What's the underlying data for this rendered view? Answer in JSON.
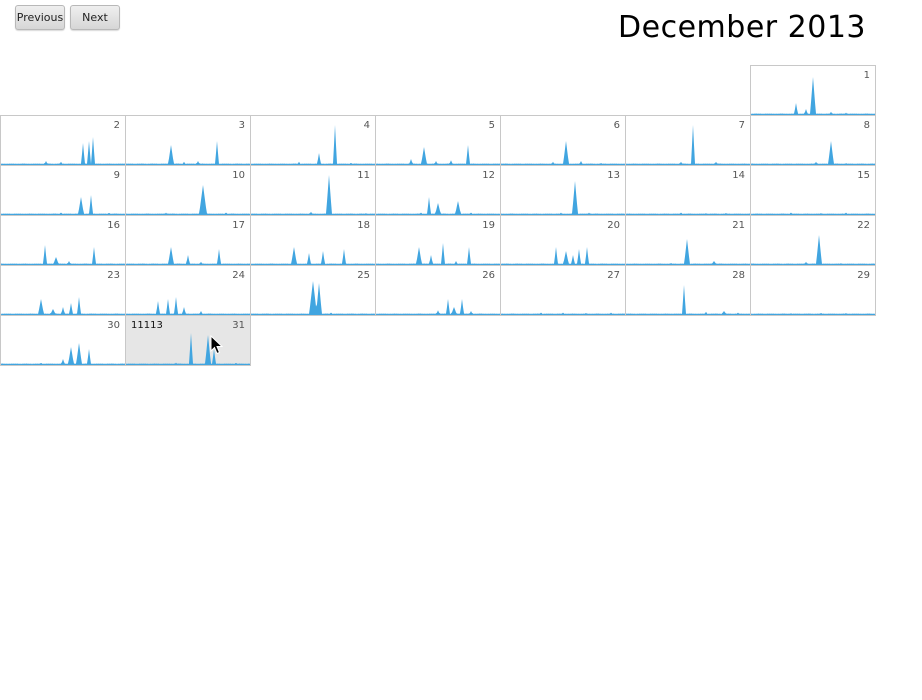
{
  "toolbar": {
    "previous_label": "Previous",
    "next_label": "Next"
  },
  "header": {
    "title": "December 2013"
  },
  "calendar": {
    "start_weekday_index": 6,
    "hovered_day": 31,
    "hovered_count": "11113",
    "area_color": "#41a5e0",
    "days": [
      {
        "day": "1",
        "spikes": [
          [
            45,
            0.3,
            2
          ],
          [
            62,
            0.95,
            3
          ],
          [
            55,
            0.15,
            2
          ],
          [
            80,
            0.08,
            2
          ],
          [
            95,
            0.06,
            2
          ]
        ]
      },
      {
        "day": "2",
        "spikes": [
          [
            82,
            0.55,
            2
          ],
          [
            88,
            0.6,
            2
          ],
          [
            92,
            0.7,
            2
          ],
          [
            45,
            0.1,
            2
          ],
          [
            60,
            0.08,
            2
          ]
        ]
      },
      {
        "day": "3",
        "spikes": [
          [
            45,
            0.5,
            3
          ],
          [
            72,
            0.1,
            2
          ],
          [
            91,
            0.6,
            2
          ],
          [
            58,
            0.08,
            2
          ]
        ]
      },
      {
        "day": "4",
        "spikes": [
          [
            84,
            1.0,
            2
          ],
          [
            68,
            0.3,
            2
          ],
          [
            48,
            0.08,
            2
          ],
          [
            100,
            0.05,
            2
          ]
        ]
      },
      {
        "day": "5",
        "spikes": [
          [
            48,
            0.45,
            3
          ],
          [
            92,
            0.5,
            2
          ],
          [
            35,
            0.15,
            2
          ],
          [
            60,
            0.1,
            2
          ],
          [
            75,
            0.12,
            2
          ]
        ]
      },
      {
        "day": "6",
        "spikes": [
          [
            65,
            0.6,
            3
          ],
          [
            52,
            0.08,
            2
          ],
          [
            80,
            0.1,
            2
          ],
          [
            100,
            0.05,
            2
          ]
        ]
      },
      {
        "day": "7",
        "spikes": [
          [
            67,
            1.0,
            2
          ],
          [
            55,
            0.08,
            2
          ],
          [
            90,
            0.08,
            2
          ]
        ]
      },
      {
        "day": "8",
        "spikes": [
          [
            80,
            0.6,
            3
          ],
          [
            65,
            0.08,
            2
          ],
          [
            95,
            0.05,
            2
          ]
        ]
      },
      {
        "day": "9",
        "spikes": [
          [
            80,
            0.45,
            3
          ],
          [
            90,
            0.5,
            2
          ],
          [
            60,
            0.06,
            2
          ],
          [
            108,
            0.05,
            2
          ]
        ]
      },
      {
        "day": "10",
        "spikes": [
          [
            77,
            0.75,
            4
          ],
          [
            40,
            0.06,
            2
          ],
          [
            100,
            0.06,
            2
          ]
        ]
      },
      {
        "day": "11",
        "spikes": [
          [
            78,
            1.0,
            3
          ],
          [
            60,
            0.08,
            2
          ],
          [
            115,
            0.05,
            2
          ]
        ]
      },
      {
        "day": "12",
        "spikes": [
          [
            53,
            0.45,
            2
          ],
          [
            62,
            0.3,
            3
          ],
          [
            82,
            0.35,
            3
          ],
          [
            45,
            0.06,
            2
          ],
          [
            95,
            0.06,
            2
          ]
        ]
      },
      {
        "day": "13",
        "spikes": [
          [
            74,
            0.85,
            3
          ],
          [
            60,
            0.06,
            2
          ],
          [
            88,
            0.06,
            2
          ]
        ]
      },
      {
        "day": "14",
        "spikes": [
          [
            55,
            0.06,
            2
          ],
          [
            80,
            0.05,
            2
          ],
          [
            100,
            0.05,
            2
          ]
        ]
      },
      {
        "day": "15",
        "spikes": [
          [
            40,
            0.06,
            2
          ],
          [
            70,
            0.05,
            2
          ],
          [
            95,
            0.06,
            2
          ]
        ]
      },
      {
        "day": "16",
        "spikes": [
          [
            44,
            0.5,
            2
          ],
          [
            55,
            0.2,
            3
          ],
          [
            93,
            0.45,
            2
          ],
          [
            68,
            0.1,
            2
          ]
        ]
      },
      {
        "day": "17",
        "spikes": [
          [
            45,
            0.45,
            3
          ],
          [
            62,
            0.25,
            2
          ],
          [
            93,
            0.4,
            2
          ],
          [
            75,
            0.08,
            2
          ]
        ]
      },
      {
        "day": "18",
        "spikes": [
          [
            43,
            0.45,
            3
          ],
          [
            58,
            0.3,
            2
          ],
          [
            72,
            0.35,
            2
          ],
          [
            93,
            0.4,
            2
          ]
        ]
      },
      {
        "day": "19",
        "spikes": [
          [
            43,
            0.45,
            3
          ],
          [
            55,
            0.25,
            2
          ],
          [
            67,
            0.55,
            2
          ],
          [
            93,
            0.45,
            2
          ],
          [
            80,
            0.1,
            2
          ]
        ]
      },
      {
        "day": "20",
        "spikes": [
          [
            55,
            0.45,
            2
          ],
          [
            65,
            0.35,
            3
          ],
          [
            78,
            0.4,
            2
          ],
          [
            86,
            0.45,
            2
          ],
          [
            72,
            0.25,
            2
          ]
        ]
      },
      {
        "day": "21",
        "spikes": [
          [
            61,
            0.65,
            3
          ],
          [
            88,
            0.1,
            3
          ],
          [
            45,
            0.05,
            2
          ]
        ]
      },
      {
        "day": "22",
        "spikes": [
          [
            68,
            0.75,
            3
          ],
          [
            55,
            0.08,
            2
          ],
          [
            90,
            0.05,
            2
          ]
        ]
      },
      {
        "day": "23",
        "spikes": [
          [
            40,
            0.4,
            3
          ],
          [
            52,
            0.15,
            3
          ],
          [
            70,
            0.3,
            2
          ],
          [
            78,
            0.45,
            2
          ],
          [
            62,
            0.2,
            2
          ]
        ]
      },
      {
        "day": "24",
        "spikes": [
          [
            32,
            0.35,
            2
          ],
          [
            42,
            0.4,
            2
          ],
          [
            50,
            0.45,
            2
          ],
          [
            58,
            0.2,
            2
          ],
          [
            75,
            0.1,
            2
          ]
        ]
      },
      {
        "day": "25",
        "spikes": [
          [
            62,
            0.85,
            4
          ],
          [
            68,
            0.8,
            3
          ],
          [
            80,
            0.06,
            2
          ]
        ]
      },
      {
        "day": "26",
        "spikes": [
          [
            72,
            0.4,
            2
          ],
          [
            86,
            0.4,
            2
          ],
          [
            78,
            0.2,
            3
          ],
          [
            62,
            0.12,
            2
          ],
          [
            95,
            0.1,
            2
          ]
        ]
      },
      {
        "day": "27",
        "spikes": [
          [
            40,
            0.06,
            2
          ],
          [
            62,
            0.06,
            2
          ],
          [
            85,
            0.05,
            2
          ],
          [
            110,
            0.06,
            2
          ]
        ]
      },
      {
        "day": "28",
        "spikes": [
          [
            58,
            0.75,
            2
          ],
          [
            80,
            0.08,
            2
          ],
          [
            98,
            0.1,
            3
          ],
          [
            112,
            0.06,
            2
          ]
        ]
      },
      {
        "day": "29",
        "spikes": [
          [
            40,
            0.05,
            2
          ],
          [
            70,
            0.05,
            2
          ],
          [
            95,
            0.05,
            2
          ]
        ]
      },
      {
        "day": "30",
        "spikes": [
          [
            70,
            0.45,
            3
          ],
          [
            78,
            0.55,
            3
          ],
          [
            88,
            0.4,
            2
          ],
          [
            62,
            0.15,
            2
          ],
          [
            40,
            0.05,
            2
          ]
        ]
      },
      {
        "day": "31",
        "spikes": [
          [
            65,
            0.8,
            2
          ],
          [
            82,
            0.75,
            3
          ],
          [
            88,
            0.4,
            2
          ],
          [
            50,
            0.06,
            2
          ],
          [
            110,
            0.05,
            2
          ]
        ]
      }
    ]
  }
}
